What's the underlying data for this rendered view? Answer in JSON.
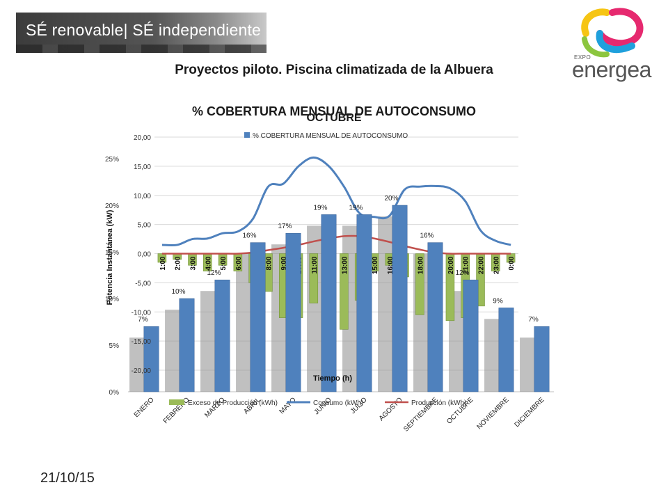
{
  "header": {
    "banner_text": "SÉ renovable| SÉ independiente",
    "logo_small": "EXPO",
    "logo_word": "energea"
  },
  "slide_title": "Proyectos piloto. Piscina climatizada de la Albuera",
  "date": "21/10/15",
  "colors": {
    "bar_blue": "#4f81bd",
    "consumo_blue": "#4f81bd",
    "produccion_red": "#c0504d",
    "exceso_green": "#9bbb59",
    "shadow_gray": "#8c8c8c"
  },
  "chart_data": [
    {
      "type": "bar",
      "title": "% COBERTURA MENSUAL DE AUTOCONSUMO",
      "legend": [
        "% COBERTURA MENSUAL DE AUTOCONSUMO"
      ],
      "legend_position": "top",
      "categories": [
        "ENERO",
        "FEBRERO",
        "MARZO",
        "ABRIL",
        "MAYO",
        "JUNIO",
        "JULIO",
        "AGOSTO",
        "SEPTIEMBRE",
        "OCTUBRE",
        "NOVIEMBRE",
        "DICIEMBRE"
      ],
      "values": [
        7,
        10,
        12,
        16,
        17,
        19,
        19,
        20,
        16,
        12,
        9,
        7
      ],
      "data_labels": [
        "7%",
        "10%",
        "12%",
        "16%",
        "17%",
        "19%",
        "19%",
        "20%",
        "16%",
        "12%",
        "9%",
        "7%"
      ],
      "y_ticks": [
        "0%",
        "5%",
        "10%",
        "15%",
        "20%",
        "25%"
      ],
      "ylim": [
        0,
        25
      ]
    },
    {
      "type": "line",
      "title": "OCTUBRE",
      "xlabel": "Tiempo (h)",
      "ylabel": "Potencia Instantánea (kW)",
      "ylim": [
        -20,
        20
      ],
      "y_ticks": [
        "20,00",
        "15,00",
        "10,00",
        "5,00",
        "0,00",
        "-5,00",
        "-10,00",
        "-15,00",
        "-20,00"
      ],
      "x": [
        "1:00",
        "2:00",
        "3:00",
        "4:00",
        "5:00",
        "6:00",
        "7:00",
        "8:00",
        "9:00",
        "10:00",
        "11:00",
        "12:00",
        "13:00",
        "14:00",
        "15:00",
        "16:00",
        "17:00",
        "18:00",
        "19:00",
        "20:00",
        "21:00",
        "22:00",
        "23:00",
        "0:00"
      ],
      "series": [
        {
          "name": "Exceso de Producción (kWh)",
          "type": "bar",
          "values": [
            -1.5,
            -1,
            -2,
            -3,
            -2,
            -3,
            -5,
            -6.5,
            -11,
            -11,
            -8.5,
            -14.5,
            -13,
            -8,
            -3,
            -2,
            -4,
            -10.5,
            -2,
            -11.5,
            -11,
            -9,
            -3,
            -1.5
          ]
        },
        {
          "name": "Consumo (kWh)",
          "type": "line",
          "values": [
            1.5,
            1.5,
            2.5,
            2.6,
            3.5,
            3.8,
            6,
            11.5,
            12,
            15,
            16.5,
            15,
            11.5,
            7,
            6.3,
            6.5,
            11,
            11.5,
            11.6,
            11.2,
            9,
            4,
            2.2,
            1.5
          ]
        },
        {
          "name": "Producción (kWh)",
          "type": "line",
          "values": [
            0,
            0,
            0,
            0,
            0,
            0,
            0.2,
            0.6,
            1,
            1.5,
            2.1,
            2.6,
            3,
            3,
            2.6,
            2,
            1.3,
            0.7,
            0.2,
            0,
            0,
            0,
            0,
            0
          ]
        }
      ]
    }
  ]
}
